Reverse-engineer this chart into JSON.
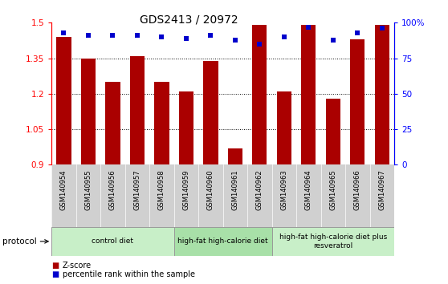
{
  "title": "GDS2413 / 20972",
  "samples": [
    "GSM140954",
    "GSM140955",
    "GSM140956",
    "GSM140957",
    "GSM140958",
    "GSM140959",
    "GSM140960",
    "GSM140961",
    "GSM140962",
    "GSM140963",
    "GSM140964",
    "GSM140965",
    "GSM140966",
    "GSM140967"
  ],
  "zscore": [
    1.44,
    1.35,
    1.25,
    1.36,
    1.25,
    1.21,
    1.34,
    0.97,
    1.49,
    1.21,
    1.49,
    1.18,
    1.43,
    1.49
  ],
  "percentile": [
    93,
    91,
    91,
    91,
    90,
    89,
    91,
    88,
    85,
    90,
    97,
    88,
    93,
    96
  ],
  "ylim_left": [
    0.9,
    1.5
  ],
  "ylim_right": [
    0,
    100
  ],
  "yticks_left": [
    0.9,
    1.05,
    1.2,
    1.35,
    1.5
  ],
  "yticks_right": [
    0,
    25,
    50,
    75,
    100
  ],
  "ytick_labels_right": [
    "0",
    "25",
    "50",
    "75",
    "100%"
  ],
  "bar_color": "#AA0000",
  "dot_color": "#0000CC",
  "group_boundaries": [
    [
      0,
      5,
      "control diet"
    ],
    [
      5,
      9,
      "high-fat high-calorie diet"
    ],
    [
      9,
      14,
      "high-fat high-calorie diet plus\nresveratrol"
    ]
  ],
  "group_colors": [
    "#c8efc8",
    "#a8e0a8",
    "#c8efc8"
  ],
  "legend_items": [
    {
      "color": "#AA0000",
      "label": "Z-score"
    },
    {
      "color": "#0000CC",
      "label": "percentile rank within the sample"
    }
  ],
  "protocol_label": "protocol",
  "grid_lines": [
    1.05,
    1.2,
    1.35
  ],
  "bar_color_dark": "#8B0000"
}
